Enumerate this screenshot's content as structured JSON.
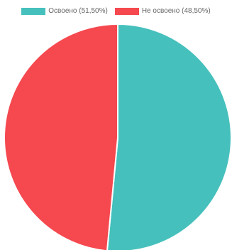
{
  "chart_data": {
    "type": "pie",
    "series": [
      {
        "name": "Освоено (51,50%)",
        "value": 51.5,
        "color": "#46c0bc"
      },
      {
        "name": "Не освоено (48,50%)",
        "value": 48.5,
        "color": "#f5484f"
      }
    ],
    "start_angle": "top",
    "direction": "clockwise",
    "border_color": "#ffffff",
    "legend_position": "top"
  }
}
